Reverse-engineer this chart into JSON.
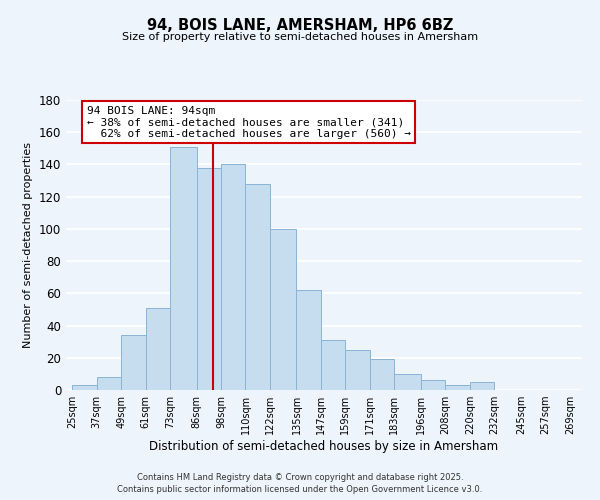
{
  "title": "94, BOIS LANE, AMERSHAM, HP6 6BZ",
  "subtitle": "Size of property relative to semi-detached houses in Amersham",
  "xlabel": "Distribution of semi-detached houses by size in Amersham",
  "ylabel": "Number of semi-detached properties",
  "bar_left_edges": [
    25,
    37,
    49,
    61,
    73,
    86,
    98,
    110,
    122,
    135,
    147,
    159,
    171,
    183,
    196,
    208,
    220,
    232,
    245,
    257
  ],
  "bar_heights": [
    3,
    8,
    34,
    51,
    151,
    138,
    140,
    128,
    100,
    62,
    31,
    25,
    19,
    10,
    6,
    3,
    5,
    0,
    0,
    0
  ],
  "bar_widths": [
    12,
    12,
    12,
    12,
    13,
    12,
    12,
    12,
    13,
    12,
    12,
    12,
    12,
    13,
    12,
    12,
    12,
    13,
    12,
    12
  ],
  "bar_color": "#c6ddf0",
  "bar_edge_color": "#8ab4d4",
  "vline_x": 94,
  "vline_color": "#cc0000",
  "ann_line1": "94 BOIS LANE: 94sqm",
  "ann_line2": "← 38% of semi-detached houses are smaller (341)",
  "ann_line3": "  62% of semi-detached houses are larger (560) →",
  "ylim": [
    0,
    180
  ],
  "xlim": [
    22,
    275
  ],
  "xtick_labels": [
    "25sqm",
    "37sqm",
    "49sqm",
    "61sqm",
    "73sqm",
    "86sqm",
    "98sqm",
    "110sqm",
    "122sqm",
    "135sqm",
    "147sqm",
    "159sqm",
    "171sqm",
    "183sqm",
    "196sqm",
    "208sqm",
    "220sqm",
    "232sqm",
    "245sqm",
    "257sqm",
    "269sqm"
  ],
  "xtick_positions": [
    25,
    37,
    49,
    61,
    73,
    86,
    98,
    110,
    122,
    135,
    147,
    159,
    171,
    183,
    196,
    208,
    220,
    232,
    245,
    257,
    269
  ],
  "ytick_positions": [
    0,
    20,
    40,
    60,
    80,
    100,
    120,
    140,
    160,
    180
  ],
  "background_color": "#eef4fb",
  "grid_color": "#ffffff",
  "footer_line1": "Contains HM Land Registry data © Crown copyright and database right 2025.",
  "footer_line2": "Contains public sector information licensed under the Open Government Licence v3.0."
}
